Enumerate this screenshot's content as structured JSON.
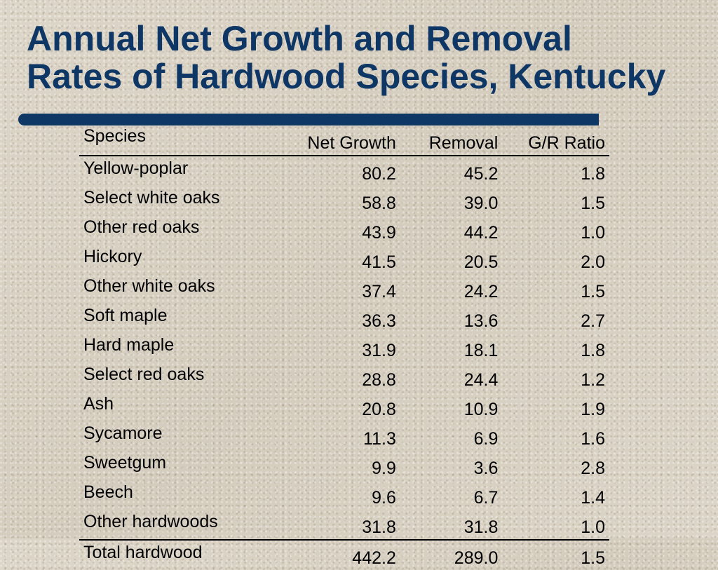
{
  "title": {
    "line1": "Annual Net Growth and Removal",
    "line2": "Rates of Hardwood Species, Kentucky"
  },
  "colors": {
    "title": "#0f3766",
    "accent_bar": "#0f3766",
    "background": "#d9d2c4",
    "text": "#000000"
  },
  "table": {
    "headers": {
      "species": "Species",
      "net_growth": "Net Growth",
      "removal": "Removal",
      "ratio": "G/R Ratio"
    },
    "rows": [
      {
        "species": "Yellow-poplar",
        "net_growth": "80.2",
        "removal": "45.2",
        "ratio": "1.8"
      },
      {
        "species": "Select white oaks",
        "net_growth": "58.8",
        "removal": "39.0",
        "ratio": "1.5"
      },
      {
        "species": "Other red oaks",
        "net_growth": "43.9",
        "removal": "44.2",
        "ratio": "1.0"
      },
      {
        "species": "Hickory",
        "net_growth": "41.5",
        "removal": "20.5",
        "ratio": "2.0"
      },
      {
        "species": "Other white oaks",
        "net_growth": "37.4",
        "removal": "24.2",
        "ratio": "1.5"
      },
      {
        "species": "Soft maple",
        "net_growth": "36.3",
        "removal": "13.6",
        "ratio": "2.7"
      },
      {
        "species": "Hard maple",
        "net_growth": "31.9",
        "removal": "18.1",
        "ratio": "1.8"
      },
      {
        "species": "Select red oaks",
        "net_growth": "28.8",
        "removal": "24.4",
        "ratio": "1.2"
      },
      {
        "species": "Ash",
        "net_growth": "20.8",
        "removal": "10.9",
        "ratio": "1.9"
      },
      {
        "species": "Sycamore",
        "net_growth": "11.3",
        "removal": "6.9",
        "ratio": "1.6"
      },
      {
        "species": "Sweetgum",
        "net_growth": "9.9",
        "removal": "3.6",
        "ratio": "2.8"
      },
      {
        "species": "Beech",
        "net_growth": "9.6",
        "removal": "6.7",
        "ratio": "1.4"
      },
      {
        "species": "Other hardwoods",
        "net_growth": "31.8",
        "removal": "31.8",
        "ratio": "1.0"
      }
    ],
    "total": {
      "species": "Total hardwood",
      "net_growth": "442.2",
      "removal": "289.0",
      "ratio": "1.5"
    }
  }
}
